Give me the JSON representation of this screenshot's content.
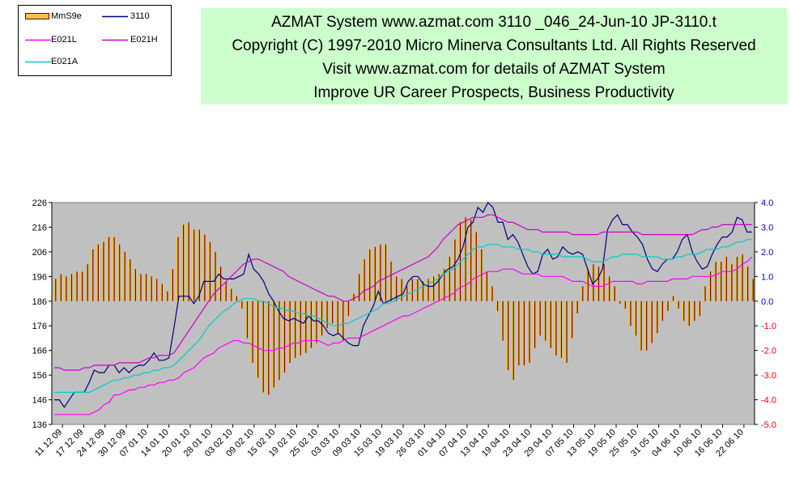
{
  "banner": {
    "lines": [
      "AZMAT System  www.azmat.com 3110     _046_24-Jun-10 JP-3110.t",
      "Copyright (C) 1997-2010 Micro Minerva Consultants Ltd. All Rights Reserved",
      "Visit  www.azmat.com  for details of AZMAT System",
      "Improve UR Career Prospects, Business Productivity"
    ]
  },
  "legend": {
    "items": [
      {
        "label": "MmS9e",
        "color": "#800000",
        "fill": "#e8c44a",
        "kind": "bar"
      },
      {
        "label": "3110",
        "color": "#000080",
        "kind": "line"
      },
      {
        "label": "E021L",
        "color": "#ff00ff",
        "kind": "line"
      },
      {
        "label": "E021H",
        "color": "#cc00cc",
        "kind": "line"
      },
      {
        "label": "E021A",
        "color": "#00cccc",
        "kind": "line"
      }
    ]
  },
  "chart_data": {
    "type": "bar",
    "plot_background": "#c0c0c0",
    "left_axis": {
      "range": [
        136,
        226
      ],
      "ticks": [
        136,
        146,
        156,
        166,
        176,
        186,
        196,
        206,
        216,
        226
      ]
    },
    "right_axis": {
      "range": [
        -5.0,
        4.0
      ],
      "ticks": [
        "-5.0",
        "-4.0",
        "-3.0",
        "-2.0",
        "-1.0",
        "0.0",
        "1.0",
        "2.0",
        "3.0",
        "4.0"
      ]
    },
    "x_tick_labels": [
      "11 12 09",
      "17 12 09",
      "24 12 09",
      "30 12 09",
      "07 01 10",
      "14 01 10",
      "20 01 10",
      "28 01 10",
      "03 02 10",
      "09 02 10",
      "15 02 10",
      "19 02 10",
      "25 02 10",
      "03 03 10",
      "09 03 10",
      "15 03 10",
      "19 03 10",
      "26 03 10",
      "01 04 10",
      "07 04 10",
      "13 04 10",
      "19 04 10",
      "23 04 10",
      "29 04 10",
      "07 05 10",
      "13 05 10",
      "19 05 10",
      "25 05 10",
      "31 05 10",
      "04 06 10",
      "10 06 10",
      "16 06 10",
      "22 06 10"
    ],
    "series": [
      {
        "name": "MmS9e",
        "axis": "right",
        "type": "bar",
        "values": [
          0.9,
          1.1,
          1.0,
          1.1,
          1.2,
          1.2,
          1.5,
          2.1,
          2.3,
          2.4,
          2.6,
          2.6,
          2.3,
          2.0,
          1.7,
          1.3,
          1.1,
          1.1,
          1.0,
          0.9,
          0.7,
          0.4,
          1.3,
          2.6,
          3.1,
          3.2,
          2.9,
          2.9,
          2.7,
          2.4,
          2.0,
          1.4,
          0.8,
          0.5,
          0.2,
          -0.3,
          -1.5,
          -2.5,
          -3.1,
          -3.7,
          -3.8,
          -3.5,
          -3.2,
          -2.9,
          -2.5,
          -2.3,
          -2.2,
          -2.1,
          -1.9,
          -1.7,
          -1.4,
          -1.1,
          -0.9,
          -1.3,
          -1.6,
          -0.6,
          0.3,
          1.1,
          1.7,
          2.1,
          2.2,
          2.3,
          2.3,
          1.6,
          1.0,
          0.9,
          0.6,
          0.9,
          0.9,
          0.8,
          0.9,
          1.0,
          1.1,
          1.3,
          1.8,
          2.5,
          3.2,
          3.4,
          3.3,
          2.8,
          2.1,
          1.2,
          0.6,
          -0.4,
          -1.6,
          -2.8,
          -3.2,
          -2.6,
          -2.6,
          -2.5,
          -1.9,
          -1.4,
          -1.6,
          -1.9,
          -2.2,
          -2.3,
          -2.5,
          -1.5,
          -0.5,
          0.6,
          1.3,
          1.5,
          1.4,
          1.5,
          1.0,
          0.6,
          -0.1,
          -0.3,
          -1.0,
          -1.4,
          -2.0,
          -2.0,
          -1.7,
          -1.3,
          -0.8,
          -0.4,
          0.2,
          -0.3,
          -0.8,
          -1.0,
          -0.8,
          -0.6,
          0.6,
          1.2,
          1.6,
          1.6,
          1.8,
          1.5,
          1.8,
          1.9,
          1.4,
          0.9
        ]
      },
      {
        "name": "3110",
        "axis": "left",
        "type": "line",
        "values": [
          146,
          146,
          143,
          146,
          149,
          149,
          149,
          153,
          158,
          157,
          157,
          160,
          160,
          157,
          159,
          157,
          159,
          160,
          160,
          162,
          165,
          162,
          162,
          163,
          175,
          188,
          188,
          188,
          185,
          188,
          194,
          194,
          194,
          197,
          195,
          195,
          195,
          196,
          197,
          205,
          199,
          197,
          194,
          189,
          186,
          182,
          179,
          178,
          179,
          178,
          177,
          180,
          178,
          178,
          176,
          173,
          172,
          173,
          171,
          169,
          168,
          168,
          176,
          180,
          184,
          190,
          185,
          186,
          187,
          188,
          189,
          194,
          196,
          196,
          193,
          192,
          192,
          194,
          197,
          199,
          200,
          203,
          208,
          216,
          218,
          224,
          222,
          226,
          224,
          218,
          218,
          211,
          213,
          210,
          205,
          200,
          197,
          198,
          205,
          207,
          203,
          204,
          208,
          206,
          205,
          206,
          205,
          199,
          193,
          195,
          199,
          215,
          219,
          221,
          217,
          217,
          214,
          212,
          209,
          203,
          199,
          198,
          201,
          203,
          203,
          206,
          211,
          213,
          206,
          202,
          199,
          200,
          205,
          209,
          212,
          212,
          214,
          220,
          219,
          214,
          214
        ]
      },
      {
        "name": "E021L",
        "axis": "left",
        "type": "line",
        "values": [
          140,
          140,
          140,
          140,
          140,
          140,
          140,
          140,
          141,
          142,
          144,
          145,
          148,
          148,
          149,
          150,
          150,
          151,
          151,
          152,
          152,
          153,
          153,
          154,
          154,
          155,
          157,
          158,
          159,
          161,
          163,
          164,
          165,
          167,
          168,
          169,
          170,
          170,
          169,
          169,
          168,
          167,
          166,
          166,
          166,
          167,
          167,
          168,
          169,
          169,
          170,
          170,
          170,
          170,
          169,
          168,
          169,
          169,
          170,
          171,
          171,
          171,
          172,
          173,
          174,
          175,
          176,
          177,
          178,
          179,
          180,
          180,
          181,
          182,
          183,
          184,
          185,
          186,
          187,
          188,
          189,
          191,
          192,
          193,
          195,
          196,
          197,
          198,
          198,
          198,
          199,
          199,
          199,
          198,
          197,
          197,
          197,
          197,
          196,
          196,
          196,
          196,
          196,
          195,
          194,
          194,
          194,
          193,
          192,
          192,
          192,
          193,
          194,
          194,
          194,
          194,
          194,
          193,
          193,
          194,
          194,
          194,
          194,
          194,
          195,
          195,
          195,
          195,
          196,
          196,
          196,
          196,
          196,
          197,
          198,
          198,
          198,
          199,
          201,
          202,
          204
        ]
      },
      {
        "name": "E021H",
        "axis": "left",
        "type": "line",
        "values": [
          159,
          159,
          158,
          158,
          158,
          158,
          159,
          159,
          160,
          160,
          160,
          160,
          160,
          161,
          161,
          161,
          161,
          161,
          162,
          163,
          163,
          164,
          164,
          164,
          165,
          168,
          171,
          174,
          177,
          180,
          183,
          186,
          189,
          191,
          193,
          195,
          197,
          199,
          201,
          202,
          203,
          203,
          202,
          201,
          200,
          199,
          198,
          196,
          195,
          194,
          193,
          192,
          191,
          190,
          189,
          188,
          188,
          187,
          186,
          186,
          187,
          188,
          190,
          191,
          192,
          194,
          195,
          196,
          197,
          198,
          199,
          200,
          201,
          202,
          203,
          204,
          206,
          208,
          211,
          213,
          215,
          217,
          218,
          219,
          220,
          220,
          220,
          221,
          221,
          220,
          219,
          218,
          218,
          217,
          216,
          215,
          215,
          215,
          214,
          214,
          214,
          214,
          214,
          214,
          213,
          213,
          213,
          213,
          213,
          213,
          214,
          214,
          214,
          214,
          214,
          214,
          214,
          214,
          213,
          213,
          213,
          213,
          213,
          213,
          213,
          213,
          213,
          213,
          213,
          214,
          215,
          215,
          216,
          216,
          217,
          217,
          217,
          217,
          217,
          217,
          217
        ]
      },
      {
        "name": "E021A",
        "axis": "left",
        "type": "line",
        "values": [
          149,
          149,
          149,
          149,
          149,
          149,
          149,
          149,
          150,
          151,
          152,
          153,
          154,
          154,
          155,
          155,
          156,
          156,
          157,
          157,
          158,
          158,
          159,
          159,
          160,
          162,
          164,
          166,
          168,
          170,
          173,
          176,
          178,
          180,
          182,
          183,
          185,
          186,
          187,
          187,
          187,
          186,
          186,
          185,
          184,
          183,
          183,
          182,
          182,
          181,
          181,
          180,
          180,
          179,
          178,
          177,
          176,
          176,
          177,
          177,
          178,
          179,
          180,
          181,
          182,
          183,
          185,
          185,
          186,
          187,
          188,
          189,
          190,
          191,
          192,
          193,
          194,
          195,
          197,
          198,
          199,
          201,
          203,
          205,
          207,
          208,
          208,
          209,
          209,
          209,
          208,
          208,
          208,
          207,
          207,
          207,
          206,
          206,
          205,
          205,
          205,
          205,
          204,
          204,
          204,
          204,
          204,
          203,
          202,
          202,
          202,
          203,
          204,
          204,
          205,
          205,
          205,
          205,
          204,
          204,
          204,
          204,
          203,
          203,
          203,
          204,
          204,
          205,
          205,
          205,
          206,
          207,
          207,
          207,
          208,
          208,
          209,
          210,
          210,
          211,
          211
        ]
      }
    ]
  }
}
